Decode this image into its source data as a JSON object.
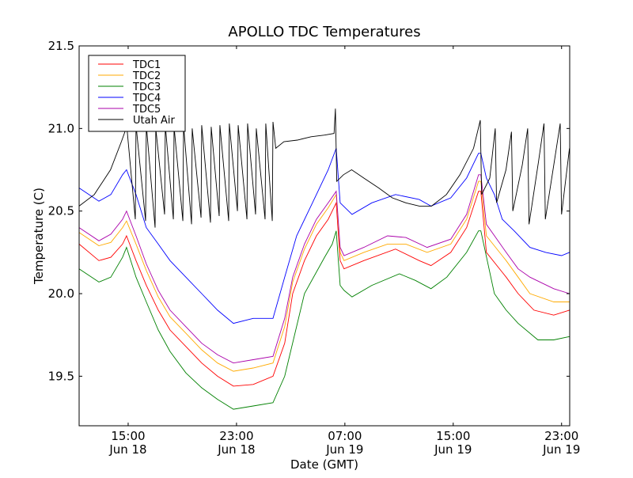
{
  "chart_data": {
    "type": "line",
    "title": "APOLLO TDC Temperatures",
    "xlabel": "Date (GMT)",
    "ylabel": "Temperature (C)",
    "x_units": "hours since Jun 18 00:00 GMT",
    "xlim": [
      11.38,
      47.6
    ],
    "ylim": [
      19.2,
      21.5
    ],
    "grid": false,
    "legend_position": "top-left",
    "yticks": [
      {
        "v": 19.5,
        "label": "19.5"
      },
      {
        "v": 20.0,
        "label": "20.0"
      },
      {
        "v": 20.5,
        "label": "20.5"
      },
      {
        "v": 21.0,
        "label": "21.0"
      },
      {
        "v": 21.5,
        "label": "21.5"
      }
    ],
    "xticks": [
      {
        "v": 15,
        "time": "15:00",
        "date": "Jun 18"
      },
      {
        "v": 23,
        "time": "23:00",
        "date": "Jun 18"
      },
      {
        "v": 31,
        "time": "07:00",
        "date": "Jun 19"
      },
      {
        "v": 39,
        "time": "15:00",
        "date": "Jun 19"
      },
      {
        "v": 47,
        "time": "23:00",
        "date": "Jun 19"
      }
    ],
    "series": [
      {
        "name": "TDC1",
        "color": "#ff0000",
        "points": [
          [
            11.38,
            20.3
          ],
          [
            12.84,
            20.2
          ],
          [
            13.72,
            20.22
          ],
          [
            14.59,
            20.3
          ],
          [
            14.88,
            20.35
          ],
          [
            15.58,
            20.2
          ],
          [
            16.34,
            20.05
          ],
          [
            17.22,
            19.9
          ],
          [
            18.09,
            19.78
          ],
          [
            19.26,
            19.68
          ],
          [
            20.43,
            19.58
          ],
          [
            21.6,
            19.5
          ],
          [
            22.77,
            19.44
          ],
          [
            24.23,
            19.45
          ],
          [
            25.69,
            19.5
          ],
          [
            26.56,
            19.7
          ],
          [
            27.15,
            20.0
          ],
          [
            28.02,
            20.2
          ],
          [
            28.9,
            20.35
          ],
          [
            29.77,
            20.45
          ],
          [
            30.36,
            20.55
          ],
          [
            30.65,
            20.2
          ],
          [
            30.94,
            20.15
          ],
          [
            32.4,
            20.2
          ],
          [
            34.74,
            20.27
          ],
          [
            36.49,
            20.2
          ],
          [
            37.36,
            20.17
          ],
          [
            38.82,
            20.25
          ],
          [
            39.99,
            20.4
          ],
          [
            40.87,
            20.62
          ],
          [
            41.04,
            20.62
          ],
          [
            41.45,
            20.25
          ],
          [
            42.91,
            20.1
          ],
          [
            43.79,
            20.0
          ],
          [
            44.96,
            19.9
          ],
          [
            46.42,
            19.87
          ],
          [
            47.58,
            19.9
          ]
        ]
      },
      {
        "name": "TDC2",
        "color": "#ffaa00",
        "points": [
          [
            11.38,
            20.37
          ],
          [
            12.84,
            20.29
          ],
          [
            13.72,
            20.31
          ],
          [
            14.59,
            20.4
          ],
          [
            14.88,
            20.44
          ],
          [
            15.58,
            20.3
          ],
          [
            16.34,
            20.14
          ],
          [
            17.22,
            19.98
          ],
          [
            18.09,
            19.86
          ],
          [
            19.26,
            19.76
          ],
          [
            20.43,
            19.66
          ],
          [
            21.6,
            19.58
          ],
          [
            22.77,
            19.53
          ],
          [
            24.23,
            19.55
          ],
          [
            25.69,
            19.58
          ],
          [
            26.56,
            19.8
          ],
          [
            27.15,
            20.07
          ],
          [
            28.02,
            20.27
          ],
          [
            28.9,
            20.42
          ],
          [
            29.77,
            20.52
          ],
          [
            30.36,
            20.6
          ],
          [
            30.65,
            20.25
          ],
          [
            30.94,
            20.2
          ],
          [
            32.4,
            20.25
          ],
          [
            34.15,
            20.3
          ],
          [
            35.5,
            20.3
          ],
          [
            37.07,
            20.25
          ],
          [
            38.82,
            20.3
          ],
          [
            39.99,
            20.45
          ],
          [
            40.87,
            20.68
          ],
          [
            41.04,
            20.68
          ],
          [
            41.45,
            20.35
          ],
          [
            42.91,
            20.2
          ],
          [
            43.79,
            20.1
          ],
          [
            44.66,
            20.0
          ],
          [
            46.42,
            19.95
          ],
          [
            47.58,
            19.95
          ]
        ]
      },
      {
        "name": "TDC3",
        "color": "#008000",
        "points": [
          [
            11.38,
            20.15
          ],
          [
            12.84,
            20.07
          ],
          [
            13.72,
            20.1
          ],
          [
            14.59,
            20.22
          ],
          [
            14.88,
            20.28
          ],
          [
            15.58,
            20.1
          ],
          [
            16.34,
            19.95
          ],
          [
            17.22,
            19.78
          ],
          [
            18.09,
            19.65
          ],
          [
            19.26,
            19.52
          ],
          [
            20.43,
            19.43
          ],
          [
            21.6,
            19.36
          ],
          [
            22.77,
            19.3
          ],
          [
            24.23,
            19.32
          ],
          [
            25.69,
            19.34
          ],
          [
            26.56,
            19.5
          ],
          [
            28.02,
            20.0
          ],
          [
            29.5,
            20.22
          ],
          [
            30.07,
            20.3
          ],
          [
            30.36,
            20.38
          ],
          [
            30.65,
            20.05
          ],
          [
            30.94,
            20.02
          ],
          [
            31.53,
            19.98
          ],
          [
            32.99,
            20.05
          ],
          [
            35.03,
            20.12
          ],
          [
            36.2,
            20.08
          ],
          [
            37.36,
            20.03
          ],
          [
            38.53,
            20.1
          ],
          [
            39.99,
            20.25
          ],
          [
            40.87,
            20.38
          ],
          [
            41.04,
            20.38
          ],
          [
            42.04,
            20.0
          ],
          [
            42.91,
            19.9
          ],
          [
            43.79,
            19.82
          ],
          [
            45.25,
            19.72
          ],
          [
            46.42,
            19.72
          ],
          [
            47.58,
            19.74
          ]
        ]
      },
      {
        "name": "TDC4",
        "color": "#0000ff",
        "points": [
          [
            11.38,
            20.64
          ],
          [
            12.84,
            20.56
          ],
          [
            13.72,
            20.6
          ],
          [
            14.59,
            20.72
          ],
          [
            14.88,
            20.75
          ],
          [
            15.58,
            20.6
          ],
          [
            16.34,
            20.4
          ],
          [
            17.22,
            20.3
          ],
          [
            18.09,
            20.2
          ],
          [
            19.26,
            20.1
          ],
          [
            20.43,
            20.0
          ],
          [
            21.6,
            19.9
          ],
          [
            22.77,
            19.82
          ],
          [
            24.23,
            19.85
          ],
          [
            25.69,
            19.85
          ],
          [
            26.56,
            20.1
          ],
          [
            27.44,
            20.35
          ],
          [
            28.61,
            20.55
          ],
          [
            29.77,
            20.75
          ],
          [
            30.36,
            20.88
          ],
          [
            30.65,
            20.55
          ],
          [
            31.53,
            20.48
          ],
          [
            32.99,
            20.55
          ],
          [
            34.74,
            20.6
          ],
          [
            36.49,
            20.57
          ],
          [
            37.36,
            20.53
          ],
          [
            38.82,
            20.58
          ],
          [
            39.99,
            20.7
          ],
          [
            40.87,
            20.85
          ],
          [
            41.04,
            20.85
          ],
          [
            41.45,
            20.7
          ],
          [
            42.04,
            20.6
          ],
          [
            42.62,
            20.45
          ],
          [
            43.5,
            20.38
          ],
          [
            44.66,
            20.28
          ],
          [
            45.83,
            20.25
          ],
          [
            47.0,
            20.23
          ],
          [
            47.58,
            20.25
          ]
        ]
      },
      {
        "name": "TDC5",
        "color": "#aa00aa",
        "points": [
          [
            11.38,
            20.4
          ],
          [
            12.84,
            20.32
          ],
          [
            13.72,
            20.36
          ],
          [
            14.59,
            20.45
          ],
          [
            14.88,
            20.5
          ],
          [
            15.58,
            20.35
          ],
          [
            16.34,
            20.18
          ],
          [
            17.22,
            20.02
          ],
          [
            18.09,
            19.9
          ],
          [
            19.26,
            19.8
          ],
          [
            20.43,
            19.7
          ],
          [
            21.6,
            19.63
          ],
          [
            22.77,
            19.58
          ],
          [
            24.23,
            19.6
          ],
          [
            25.69,
            19.62
          ],
          [
            26.56,
            19.85
          ],
          [
            27.15,
            20.1
          ],
          [
            28.02,
            20.3
          ],
          [
            28.9,
            20.45
          ],
          [
            29.77,
            20.55
          ],
          [
            30.36,
            20.62
          ],
          [
            30.65,
            20.28
          ],
          [
            30.94,
            20.23
          ],
          [
            32.4,
            20.28
          ],
          [
            34.15,
            20.35
          ],
          [
            35.5,
            20.34
          ],
          [
            37.07,
            20.28
          ],
          [
            38.82,
            20.33
          ],
          [
            39.99,
            20.48
          ],
          [
            40.87,
            20.72
          ],
          [
            41.04,
            20.72
          ],
          [
            41.45,
            20.42
          ],
          [
            42.91,
            20.25
          ],
          [
            43.79,
            20.15
          ],
          [
            44.66,
            20.1
          ],
          [
            46.42,
            20.03
          ],
          [
            47.58,
            20.0
          ]
        ]
      },
      {
        "name": "Utah Air",
        "color": "#000000",
        "points": [
          [
            11.38,
            20.53
          ],
          [
            12.5,
            20.6
          ],
          [
            13.7,
            20.75
          ],
          [
            14.5,
            20.92
          ],
          [
            14.85,
            21.0
          ],
          [
            14.88,
            21.03
          ],
          [
            15.53,
            20.45
          ],
          [
            15.58,
            21.02
          ],
          [
            16.29,
            20.44
          ],
          [
            16.34,
            21.02
          ],
          [
            16.99,
            20.4
          ],
          [
            17.04,
            21.0
          ],
          [
            17.69,
            20.48
          ],
          [
            17.74,
            21.02
          ],
          [
            18.34,
            20.45
          ],
          [
            18.39,
            21.01
          ],
          [
            19.04,
            20.44
          ],
          [
            19.09,
            21.02
          ],
          [
            19.68,
            20.42
          ],
          [
            19.73,
            21.0
          ],
          [
            20.38,
            20.46
          ],
          [
            20.43,
            21.02
          ],
          [
            21.08,
            20.43
          ],
          [
            21.13,
            21.01
          ],
          [
            21.72,
            20.47
          ],
          [
            21.77,
            21.02
          ],
          [
            22.42,
            20.44
          ],
          [
            22.47,
            21.03
          ],
          [
            23.07,
            20.5
          ],
          [
            23.12,
            21.02
          ],
          [
            23.77,
            20.45
          ],
          [
            23.82,
            21.03
          ],
          [
            24.41,
            20.48
          ],
          [
            24.46,
            21.0
          ],
          [
            25.11,
            20.45
          ],
          [
            25.16,
            21.03
          ],
          [
            25.64,
            20.44
          ],
          [
            25.69,
            21.04
          ],
          [
            25.9,
            20.88
          ],
          [
            26.5,
            20.92
          ],
          [
            27.5,
            20.93
          ],
          [
            28.5,
            20.95
          ],
          [
            29.5,
            20.96
          ],
          [
            30.2,
            20.97
          ],
          [
            30.3,
            21.12
          ],
          [
            30.4,
            20.68
          ],
          [
            30.9,
            20.72
          ],
          [
            31.5,
            20.75
          ],
          [
            32.4,
            20.7
          ],
          [
            33.5,
            20.64
          ],
          [
            34.5,
            20.58
          ],
          [
            35.5,
            20.55
          ],
          [
            36.5,
            20.53
          ],
          [
            37.4,
            20.53
          ],
          [
            38.5,
            20.6
          ],
          [
            39.5,
            20.72
          ],
          [
            40.5,
            20.88
          ],
          [
            41.0,
            21.05
          ],
          [
            41.1,
            20.6
          ],
          [
            41.7,
            20.7
          ],
          [
            42.1,
            21.0
          ],
          [
            42.2,
            20.55
          ],
          [
            42.9,
            20.75
          ],
          [
            43.3,
            20.98
          ],
          [
            43.4,
            20.5
          ],
          [
            44.1,
            20.78
          ],
          [
            44.5,
            21.0
          ],
          [
            44.6,
            20.42
          ],
          [
            45.3,
            20.8
          ],
          [
            45.7,
            21.03
          ],
          [
            45.8,
            20.45
          ],
          [
            46.5,
            20.82
          ],
          [
            46.9,
            21.03
          ],
          [
            47.0,
            20.48
          ],
          [
            47.58,
            20.88
          ]
        ]
      }
    ]
  }
}
